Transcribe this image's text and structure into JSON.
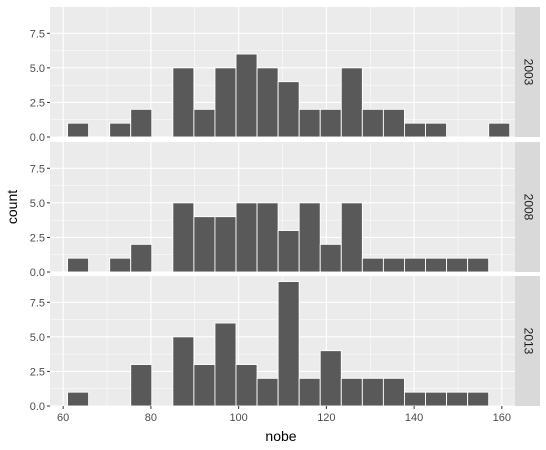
{
  "chart_data": {
    "type": "bar",
    "xlabel": "nobe",
    "ylabel": "count",
    "xlim": [
      57,
      163
    ],
    "ylim": [
      0,
      9.4
    ],
    "bin_width": 4.8,
    "bin_lefts": [
      61.0,
      65.8,
      70.6,
      75.4,
      80.2,
      85.0,
      89.8,
      94.6,
      99.4,
      104.2,
      109.0,
      113.8,
      118.6,
      123.4,
      128.2,
      133.0,
      137.8,
      142.6,
      147.4,
      152.2,
      157.0
    ],
    "x_ticks": [
      60,
      80,
      100,
      120,
      140,
      160
    ],
    "x_tick_labels": [
      "60",
      "80",
      "100",
      "120",
      "140",
      "160"
    ],
    "y_ticks": [
      0,
      2.5,
      5,
      7.5
    ],
    "y_tick_labels": [
      "0.0",
      "2.5",
      "5.0",
      "7.5"
    ],
    "series": [
      {
        "name": "2003",
        "values": [
          1,
          0,
          1,
          2,
          0,
          5,
          2,
          5,
          6,
          5,
          4,
          2,
          2,
          5,
          2,
          2,
          1,
          1,
          0,
          0,
          1
        ]
      },
      {
        "name": "2008",
        "values": [
          1,
          0,
          1,
          2,
          0,
          5,
          4,
          4,
          5,
          5,
          3,
          5,
          2,
          5,
          1,
          1,
          1,
          1,
          1,
          1,
          0
        ]
      },
      {
        "name": "2013",
        "values": [
          1,
          0,
          0,
          3,
          0,
          5,
          3,
          6,
          3,
          2,
          9,
          2,
          4,
          2,
          2,
          2,
          1,
          1,
          1,
          1,
          0
        ]
      }
    ]
  }
}
